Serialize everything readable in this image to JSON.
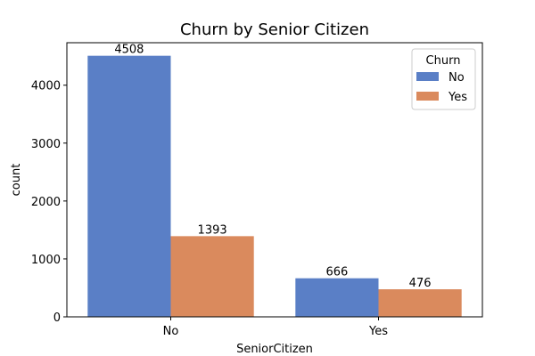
{
  "chart_data": {
    "type": "bar",
    "title": "Churn by Senior Citizen",
    "xlabel": "SeniorCitizen",
    "ylabel": "count",
    "categories": [
      "No",
      "Yes"
    ],
    "series": [
      {
        "name": "No",
        "values": [
          4508,
          666
        ],
        "color": "#5a7fc6"
      },
      {
        "name": "Yes",
        "values": [
          1393,
          476
        ],
        "color": "#da8a5d"
      }
    ],
    "ylim": [
      0,
      4733.4
    ],
    "yticks": [
      0,
      1000,
      2000,
      3000,
      4000
    ],
    "grid": false,
    "legend": {
      "title": "Churn",
      "placement": "top-right"
    },
    "data_labels": true
  }
}
